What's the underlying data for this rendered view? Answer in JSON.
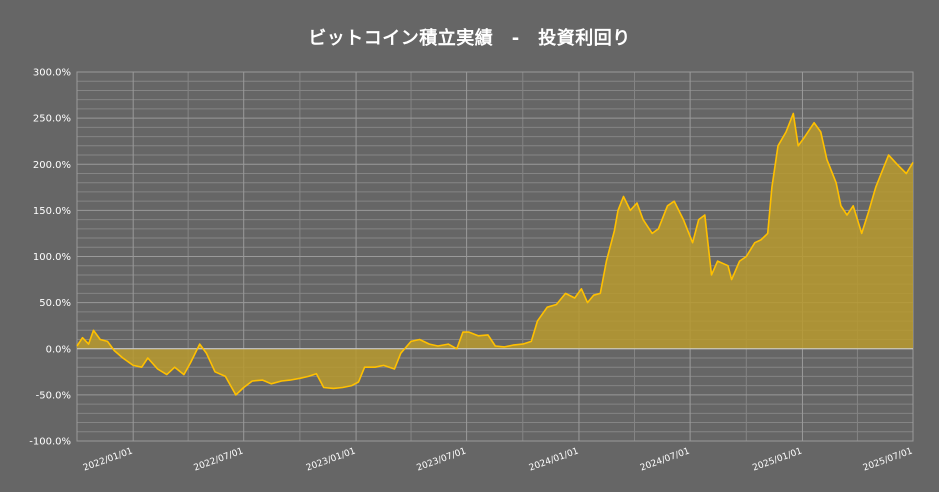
{
  "chart_data": {
    "type": "area",
    "title": "ビットコイン積立実績　-　投資利回り",
    "xlabel": "",
    "ylabel": "",
    "ylim": [
      -100,
      300
    ],
    "y_ticks": [
      "300.0%",
      "250.0%",
      "200.0%",
      "150.0%",
      "100.0%",
      "50.0%",
      "0.0%",
      "-50.0%",
      "-100.0%"
    ],
    "y_tick_values": [
      300,
      250,
      200,
      150,
      100,
      50,
      0,
      -50,
      -100
    ],
    "x_ticks": [
      "2022/01/01",
      "2022/07/01",
      "2023/01/01",
      "2023/07/01",
      "2024/01/01",
      "2024/07/01",
      "2025/01/01",
      "2025/07/01"
    ],
    "xlim": [
      "2021/10/01",
      "2025/07/01"
    ],
    "grid": true,
    "colors": {
      "background": "#666666",
      "line": "#ffc000",
      "fill": "#b89a2e",
      "grid_major": "#9a9a9a",
      "grid_minor": "#858585",
      "text": "#ffffff"
    },
    "series": [
      {
        "values": [
          [
            "2021/10/01",
            3
          ],
          [
            "2021/10/10",
            12
          ],
          [
            "2021/10/20",
            5
          ],
          [
            "2021/10/28",
            20
          ],
          [
            "2021/11/08",
            10
          ],
          [
            "2021/11/20",
            8
          ],
          [
            "2021/12/01",
            -2
          ],
          [
            "2021/12/15",
            -10
          ],
          [
            "2022/01/01",
            -18
          ],
          [
            "2022/01/15",
            -20
          ],
          [
            "2022/01/25",
            -10
          ],
          [
            "2022/02/10",
            -22
          ],
          [
            "2022/02/25",
            -28
          ],
          [
            "2022/03/10",
            -20
          ],
          [
            "2022/03/25",
            -28
          ],
          [
            "2022/04/05",
            -15
          ],
          [
            "2022/04/20",
            5
          ],
          [
            "2022/05/01",
            -5
          ],
          [
            "2022/05/15",
            -25
          ],
          [
            "2022/06/01",
            -30
          ],
          [
            "2022/06/18",
            -50
          ],
          [
            "2022/07/01",
            -42
          ],
          [
            "2022/07/15",
            -35
          ],
          [
            "2022/08/01",
            -34
          ],
          [
            "2022/08/15",
            -38
          ],
          [
            "2022/09/01",
            -35
          ],
          [
            "2022/09/15",
            -34
          ],
          [
            "2022/10/01",
            -32
          ],
          [
            "2022/10/15",
            -30
          ],
          [
            "2022/10/28",
            -27
          ],
          [
            "2022/11/09",
            -42
          ],
          [
            "2022/11/25",
            -43
          ],
          [
            "2022/12/10",
            -42
          ],
          [
            "2022/12/25",
            -40
          ],
          [
            "2023/01/05",
            -36
          ],
          [
            "2023/01/15",
            -20
          ],
          [
            "2023/02/01",
            -20
          ],
          [
            "2023/02/15",
            -18
          ],
          [
            "2023/03/05",
            -22
          ],
          [
            "2023/03/15",
            -5
          ],
          [
            "2023/04/01",
            8
          ],
          [
            "2023/04/15",
            10
          ],
          [
            "2023/05/01",
            5
          ],
          [
            "2023/05/15",
            3
          ],
          [
            "2023/06/01",
            5
          ],
          [
            "2023/06/15",
            0
          ],
          [
            "2023/06/25",
            18
          ],
          [
            "2023/07/05",
            18
          ],
          [
            "2023/07/20",
            14
          ],
          [
            "2023/08/05",
            15
          ],
          [
            "2023/08/17",
            3
          ],
          [
            "2023/09/01",
            2
          ],
          [
            "2023/09/15",
            4
          ],
          [
            "2023/10/01",
            5
          ],
          [
            "2023/10/15",
            8
          ],
          [
            "2023/10/25",
            30
          ],
          [
            "2023/11/10",
            45
          ],
          [
            "2023/11/25",
            48
          ],
          [
            "2023/12/10",
            60
          ],
          [
            "2023/12/25",
            55
          ],
          [
            "2024/01/05",
            65
          ],
          [
            "2024/01/15",
            50
          ],
          [
            "2024/01/25",
            58
          ],
          [
            "2024/02/05",
            60
          ],
          [
            "2024/02/15",
            95
          ],
          [
            "2024/02/28",
            128
          ],
          [
            "2024/03/05",
            150
          ],
          [
            "2024/03/14",
            165
          ],
          [
            "2024/03/25",
            150
          ],
          [
            "2024/04/05",
            158
          ],
          [
            "2024/04/15",
            140
          ],
          [
            "2024/04/30",
            125
          ],
          [
            "2024/05/10",
            130
          ],
          [
            "2024/05/25",
            155
          ],
          [
            "2024/06/05",
            160
          ],
          [
            "2024/06/20",
            140
          ],
          [
            "2024/07/05",
            115
          ],
          [
            "2024/07/15",
            140
          ],
          [
            "2024/07/25",
            145
          ],
          [
            "2024/08/05",
            80
          ],
          [
            "2024/08/15",
            95
          ],
          [
            "2024/09/01",
            90
          ],
          [
            "2024/09/07",
            75
          ],
          [
            "2024/09/20",
            95
          ],
          [
            "2024/10/01",
            100
          ],
          [
            "2024/10/15",
            115
          ],
          [
            "2024/10/25",
            118
          ],
          [
            "2024/11/05",
            125
          ],
          [
            "2024/11/12",
            175
          ],
          [
            "2024/11/22",
            220
          ],
          [
            "2024/12/05",
            235
          ],
          [
            "2024/12/17",
            255
          ],
          [
            "2024/12/25",
            220
          ],
          [
            "2025/01/05",
            230
          ],
          [
            "2025/01/20",
            245
          ],
          [
            "2025/01/31",
            235
          ],
          [
            "2025/02/10",
            205
          ],
          [
            "2025/02/25",
            180
          ],
          [
            "2025/03/05",
            155
          ],
          [
            "2025/03/15",
            145
          ],
          [
            "2025/03/25",
            155
          ],
          [
            "2025/04/08",
            125
          ],
          [
            "2025/04/20",
            150
          ],
          [
            "2025/05/01",
            175
          ],
          [
            "2025/05/10",
            190
          ],
          [
            "2025/05/22",
            210
          ],
          [
            "2025/06/05",
            200
          ],
          [
            "2025/06/20",
            190
          ],
          [
            "2025/07/01",
            202
          ]
        ]
      }
    ]
  }
}
